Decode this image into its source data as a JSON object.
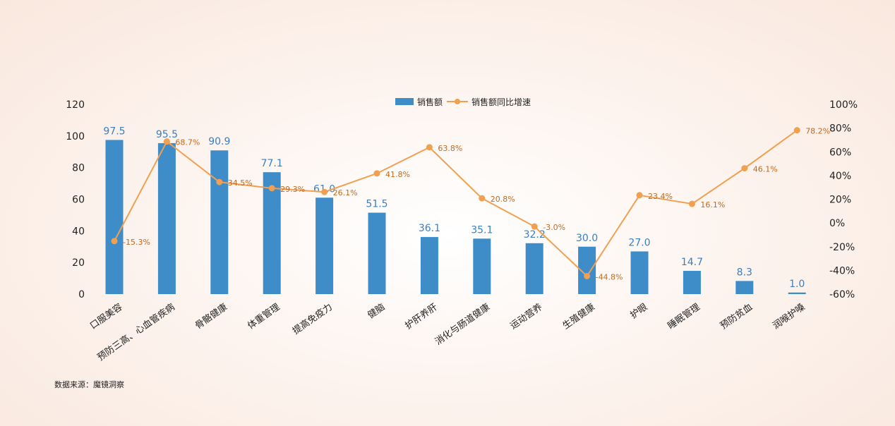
{
  "source_text": "数据来源：魔镜洞察",
  "chart_data": {
    "type": "bar",
    "categories": [
      "口服美容",
      "预防三高、心血管疾病",
      "骨骼健康",
      "体重管理",
      "提高免疫力",
      "健脑",
      "护肝养肝",
      "消化与肠道健康",
      "运动营养",
      "生殖健康",
      "护眼",
      "睡眠管理",
      "预防贫血",
      "润喉护嗓"
    ],
    "series": [
      {
        "name": "销售额",
        "kind": "bar",
        "axis": "left",
        "color": "#3e8cc8",
        "values": [
          97.5,
          95.5,
          90.9,
          77.1,
          61.0,
          51.5,
          36.1,
          35.1,
          32.2,
          30.0,
          27.0,
          14.7,
          8.3,
          1.0
        ],
        "labels": [
          "97.5",
          "95.5",
          "90.9",
          "77.1",
          "61.0",
          "51.5",
          "36.1",
          "35.1",
          "32.2",
          "30.0",
          "27.0",
          "14.7",
          "8.3",
          "1.0"
        ]
      },
      {
        "name": "销售额同比增速",
        "kind": "line",
        "axis": "right",
        "color": "#f0a050",
        "values": [
          -15.3,
          68.7,
          34.5,
          29.3,
          26.1,
          41.8,
          63.8,
          20.8,
          -3.0,
          -44.8,
          23.4,
          16.1,
          46.1,
          78.2
        ],
        "labels": [
          "-15.3%",
          "68.7%",
          "34.5%",
          "29.3%",
          "26.1%",
          "41.8%",
          "63.8%",
          "20.8%",
          "-3.0%",
          "-44.8%",
          "23.4%",
          "16.1%",
          "46.1%",
          "78.2%"
        ]
      }
    ],
    "y_left": {
      "range": [
        0,
        120
      ],
      "ticks": [
        "0",
        "20",
        "40",
        "60",
        "80",
        "100",
        "120"
      ]
    },
    "y_right": {
      "range": [
        -60,
        100
      ],
      "ticks": [
        "-60%",
        "-40%",
        "-20%",
        "0%",
        "20%",
        "40%",
        "60%",
        "80%",
        "100%"
      ]
    },
    "legend_position": "top-center",
    "grid": false
  }
}
